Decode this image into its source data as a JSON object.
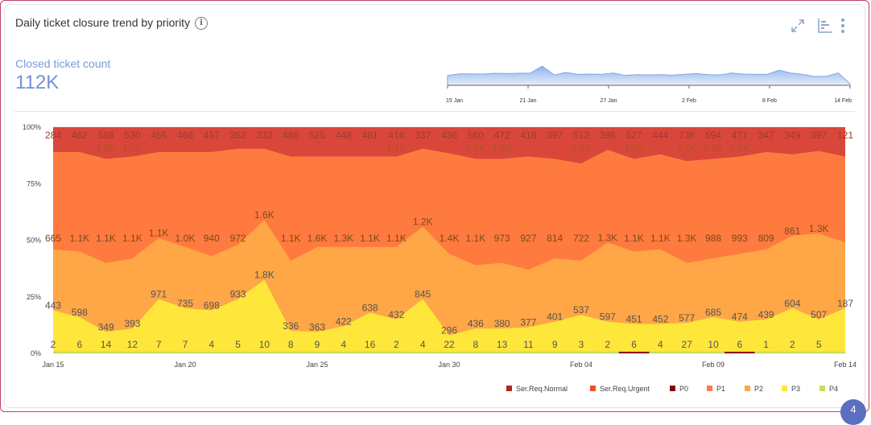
{
  "header": {
    "title": "Daily ticket closure trend by priority",
    "info_icon": "info-icon",
    "tools": [
      "expand-icon",
      "bar-chart-icon",
      "more-vert-icon"
    ]
  },
  "kpi": {
    "label": "Closed ticket count",
    "value": "112K"
  },
  "badge": {
    "count": "4"
  },
  "colors": {
    "Ser.Req.Normal": "#b3261e",
    "Ser.Req.Urgent": "#e6502c",
    "P0": "#8b0000",
    "P1": "#ff7a3f",
    "P2": "#ffa646",
    "P3": "#ffe63b",
    "P4": "#c3e05a"
  },
  "chart_data": [
    {
      "type": "area",
      "stacked": "100%",
      "y_ticks": [
        "0%",
        "25%",
        "50%",
        "75%",
        "100%"
      ],
      "x_tick_labels": [
        "Jan 15",
        "Jan 20",
        "Jan 25",
        "Jan 30",
        "Feb 04",
        "Feb 09",
        "Feb 14"
      ],
      "legend_position": "bottom-right",
      "grid": true,
      "categories": [
        "Jan 15",
        "Jan 16",
        "Jan 17",
        "Jan 18",
        "Jan 19",
        "Jan 20",
        "Jan 21",
        "Jan 22",
        "Jan 23",
        "Jan 24",
        "Jan 25",
        "Jan 26",
        "Jan 27",
        "Jan 28",
        "Jan 29",
        "Jan 30",
        "Jan 31",
        "Feb 01",
        "Feb 02",
        "Feb 03",
        "Feb 04",
        "Feb 05",
        "Feb 06",
        "Feb 07",
        "Feb 08",
        "Feb 09",
        "Feb 10",
        "Feb 11",
        "Feb 12",
        "Feb 13",
        "Feb 14"
      ],
      "series": [
        {
          "name": "P4",
          "values": [
            2,
            6,
            14,
            12,
            7,
            7,
            4,
            5,
            10,
            8,
            9,
            4,
            16,
            2,
            4,
            22,
            8,
            13,
            11,
            9,
            3,
            2,
            6,
            4,
            27,
            10,
            6,
            1,
            2,
            5,
            null
          ],
          "labels": [
            "2",
            "6",
            "14",
            "12",
            "7",
            "7",
            "4",
            "5",
            "10",
            "8",
            "9",
            "4",
            "16",
            "2",
            "4",
            "22",
            "8",
            "13",
            "11",
            "9",
            "3",
            "2",
            "6",
            "4",
            "27",
            "10",
            "6",
            "1",
            "2",
            "5",
            ""
          ]
        },
        {
          "name": "P3",
          "values": [
            443,
            598,
            349,
            393,
            971,
            735,
            698,
            933,
            1800,
            336,
            363,
            422,
            638,
            432,
            845,
            296,
            436,
            380,
            377,
            401,
            537,
            597,
            451,
            452,
            577,
            685,
            474,
            439,
            604,
            507,
            187
          ],
          "labels": [
            "443",
            "598",
            "349",
            "393",
            "971",
            "735",
            "698",
            "933",
            "1.8K",
            "336",
            "363",
            "422",
            "638",
            "432",
            "845",
            "296",
            "436",
            "380",
            "377",
            "401",
            "537",
            "597",
            "451",
            "452",
            "577",
            "685",
            "474",
            "439",
            "604",
            "507",
            "187"
          ]
        },
        {
          "name": "P2",
          "values": [
            665,
            1100,
            1100,
            1100,
            1100,
            1000,
            940,
            972,
            1600,
            1100,
            1600,
            1300,
            1100,
            1100,
            1200,
            1400,
            1100,
            973,
            927,
            814,
            722,
            1300,
            1100,
            1100,
            1300,
            988,
            993,
            809,
            861,
            1300,
            null
          ],
          "labels": [
            "665",
            "1.1K",
            "1.1K",
            "1.1K",
            "1.1K",
            "1.0K",
            "940",
            "972",
            "1.6K",
            "1.1K",
            "1.6K",
            "1.3K",
            "1.1K",
            "1.1K",
            "1.2K",
            "1.4K",
            "1.1K",
            "973",
            "927",
            "814",
            "722",
            "1.3K",
            "1.1K",
            "1.1K",
            "1.3K",
            "988",
            "993",
            "809",
            "861",
            "1.3K",
            ""
          ]
        },
        {
          "name": "P1",
          "values": [
            null,
            null,
            1800,
            1700,
            null,
            null,
            null,
            null,
            null,
            null,
            null,
            null,
            null,
            1100,
            null,
            null,
            1900,
            1600,
            null,
            null,
            1400,
            null,
            1500,
            null,
            2100,
            1800,
            1400,
            null,
            null,
            null,
            null
          ],
          "labels": [
            "",
            "",
            "1.8K",
            "1.7K",
            "",
            "",
            "",
            "",
            "",
            "",
            "",
            "",
            "",
            "1.1K",
            "",
            "",
            "1.9K",
            "1.6K",
            "",
            "",
            "1.4K",
            "",
            "1.5K",
            "",
            "2.1K",
            "1.8K",
            "1.4K",
            "",
            "",
            "",
            ""
          ]
        },
        {
          "name": "Ser.Req.Urgent",
          "values": [
            284,
            462,
            588,
            530,
            455,
            466,
            457,
            352,
            333,
            486,
            525,
            448,
            481,
            416,
            337,
            436,
            560,
            472,
            418,
            397,
            512,
            396,
            527,
            444,
            736,
            594,
            471,
            347,
            349,
            397,
            121
          ],
          "labels": [
            "284",
            "462",
            "588",
            "530",
            "455",
            "466",
            "457",
            "352",
            "333",
            "486",
            "525",
            "448",
            "481",
            "416",
            "337",
            "436",
            "560",
            "472",
            "418",
            "397",
            "512",
            "396",
            "527",
            "444",
            "736",
            "594",
            "471",
            "347",
            "349",
            "397",
            "121"
          ]
        }
      ],
      "band_tops_pct": {
        "P4": [
          0.8,
          0.8,
          0.8,
          0.8,
          0.8,
          0.7,
          0.7,
          0.7,
          0.7,
          0.8,
          0.8,
          0.8,
          0.8,
          0.8,
          0.7,
          0.7,
          0.8,
          0.8,
          0.8,
          0.8,
          0.8,
          0.8,
          0.8,
          0.8,
          0.8,
          0.8,
          0.8,
          0.8,
          0.8,
          0.8,
          0.8
        ],
        "P3": [
          19,
          16,
          9.5,
          11,
          24,
          20,
          19,
          24,
          32.5,
          10,
          9.5,
          12,
          18,
          15,
          24,
          8,
          11,
          11,
          11.5,
          14,
          17,
          14,
          13,
          13,
          13.5,
          16,
          14,
          15,
          20,
          15,
          20
        ],
        "P2": [
          46,
          45,
          40,
          42,
          51,
          47,
          43,
          48,
          59,
          41,
          47,
          47,
          47,
          47,
          56,
          44,
          39,
          40,
          37,
          42,
          41,
          49,
          45,
          46,
          40,
          42,
          44,
          46,
          52,
          53,
          49
        ],
        "P1": [
          89,
          89,
          86,
          87,
          89,
          89,
          89,
          90.5,
          90.5,
          87,
          87,
          87,
          87,
          87,
          90.5,
          88.5,
          86,
          86,
          87,
          86,
          84,
          90,
          86,
          88,
          85,
          86,
          87,
          89,
          88,
          89.5,
          87
        ]
      }
    },
    {
      "type": "area",
      "role": "overview-brush",
      "x_tick_labels": [
        "15 Jan",
        "21 Jan",
        "27 Jan",
        "2 Feb",
        "8 Feb",
        "14 Feb"
      ],
      "series": [
        {
          "values": [
            0.36,
            0.42,
            0.42,
            0.41,
            0.44,
            0.43,
            0.44,
            0.45,
            0.7,
            0.38,
            0.47,
            0.4,
            0.41,
            0.4,
            0.45,
            0.36,
            0.39,
            0.38,
            0.39,
            0.37,
            0.4,
            0.43,
            0.39,
            0.38,
            0.45,
            0.41,
            0.4,
            0.4,
            0.55,
            0.45,
            0.4,
            0.32,
            0.33,
            0.45,
            0.05
          ]
        }
      ]
    }
  ],
  "legend": [
    "Ser.Req.Normal",
    "Ser.Req.Urgent",
    "P0",
    "P1",
    "P2",
    "P3",
    "P4"
  ]
}
